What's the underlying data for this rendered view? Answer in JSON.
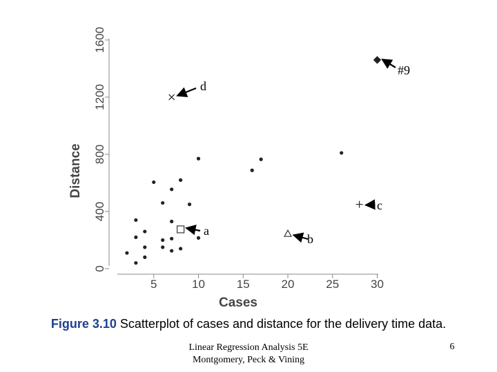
{
  "chart_data": {
    "type": "scatter",
    "xlabel": "Cases",
    "ylabel": "Distance",
    "xlim": [
      0,
      32
    ],
    "ylim": [
      0,
      1600
    ],
    "xticks": [
      5,
      10,
      15,
      20,
      25,
      30
    ],
    "yticks": [
      0,
      400,
      800,
      1200,
      1600
    ],
    "grid": false,
    "series": [
      {
        "marker": "dot",
        "points": [
          [
            2,
            110
          ],
          [
            3,
            220
          ],
          [
            3,
            340
          ],
          [
            3,
            40
          ],
          [
            4,
            260
          ],
          [
            4,
            150
          ],
          [
            4,
            80
          ],
          [
            5,
            605
          ],
          [
            6,
            460
          ],
          [
            6,
            200
          ],
          [
            6,
            150
          ],
          [
            7,
            555
          ],
          [
            7,
            330
          ],
          [
            7,
            210
          ],
          [
            7,
            125
          ],
          [
            8,
            620
          ],
          [
            8,
            140
          ],
          [
            9,
            450
          ],
          [
            10,
            770
          ],
          [
            10,
            215
          ],
          [
            16,
            688
          ],
          [
            17,
            765
          ],
          [
            26,
            810
          ],
          [
            30,
            1460
          ]
        ]
      }
    ],
    "special_points": [
      {
        "label": "#9",
        "marker": "diamond",
        "x": 30,
        "y": 1460
      },
      {
        "label": "d",
        "marker": "x",
        "x": 7,
        "y": 1200
      },
      {
        "label": "c",
        "marker": "plus",
        "x": 28,
        "y": 450
      },
      {
        "label": "a",
        "marker": "square",
        "x": 8,
        "y": 275
      },
      {
        "label": "b",
        "marker": "triangle",
        "x": 20,
        "y": 245
      }
    ]
  },
  "caption": {
    "figure_number": "Figure 3.10",
    "text": " Scatterplot of cases and distance for the delivery time data."
  },
  "footer": {
    "line1": "Linear Regression Analysis 5E",
    "line2": "Montgomery, Peck & Vining",
    "page_number": "6"
  }
}
